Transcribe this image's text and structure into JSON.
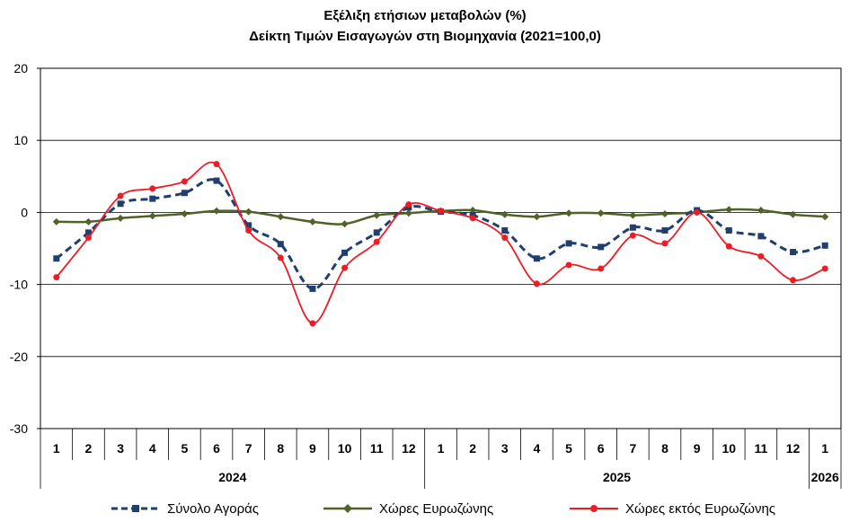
{
  "chart_data": {
    "type": "line",
    "title": "Εξέλιξη ετήσιων μεταβολών (%)",
    "subtitle": "Δείκτη Τιμών Εισαγωγών στη Βιομηχανία (2021=100,0)",
    "categories": [
      "1",
      "2",
      "3",
      "4",
      "5",
      "6",
      "7",
      "8",
      "9",
      "10",
      "11",
      "12",
      "1",
      "2",
      "3",
      "4",
      "5",
      "6",
      "7",
      "8",
      "9",
      "10",
      "11",
      "12",
      "1"
    ],
    "year_groups": [
      {
        "label": "2024",
        "count": 12
      },
      {
        "label": "2025",
        "count": 12
      },
      {
        "label": "2026",
        "count": 1
      }
    ],
    "ylim": [
      -30,
      20
    ],
    "yticks": [
      20,
      10,
      0,
      -10,
      -20,
      -30
    ],
    "grid": true,
    "legend_position": "bottom",
    "series": [
      {
        "name": "Σύνολο Αγοράς",
        "color": "#1F3F6E",
        "style": "dashed",
        "marker": "square",
        "values": [
          -6.4,
          -2.8,
          1.2,
          1.9,
          2.7,
          4.4,
          -1.8,
          -4.4,
          -10.6,
          -5.6,
          -2.8,
          0.7,
          0.1,
          -0.4,
          -2.5,
          -6.4,
          -4.3,
          -4.8,
          -2.1,
          -2.5,
          0.3,
          -2.5,
          -3.3,
          -5.5,
          -4.6
        ]
      },
      {
        "name": "Χώρες Ευρωζώνης",
        "color": "#4F6228",
        "style": "solid",
        "marker": "diamond",
        "values": [
          -1.3,
          -1.3,
          -0.8,
          -0.5,
          -0.2,
          0.2,
          0.1,
          -0.6,
          -1.3,
          -1.6,
          -0.4,
          -0.1,
          0.2,
          0.3,
          -0.3,
          -0.6,
          -0.1,
          -0.1,
          -0.4,
          -0.2,
          0.0,
          0.4,
          0.3,
          -0.3,
          -0.6
        ]
      },
      {
        "name": "Χώρες εκτός Ευρωζώνης",
        "color": "#EE1C25",
        "style": "solid",
        "marker": "circle",
        "values": [
          -9.0,
          -3.5,
          2.3,
          3.3,
          4.3,
          6.7,
          -2.5,
          -6.3,
          -15.4,
          -7.7,
          -4.1,
          1.1,
          0.2,
          -0.8,
          -3.5,
          -9.9,
          -7.3,
          -7.8,
          -3.2,
          -4.3,
          0.0,
          -4.7,
          -6.1,
          -9.4,
          -7.8
        ]
      }
    ]
  }
}
